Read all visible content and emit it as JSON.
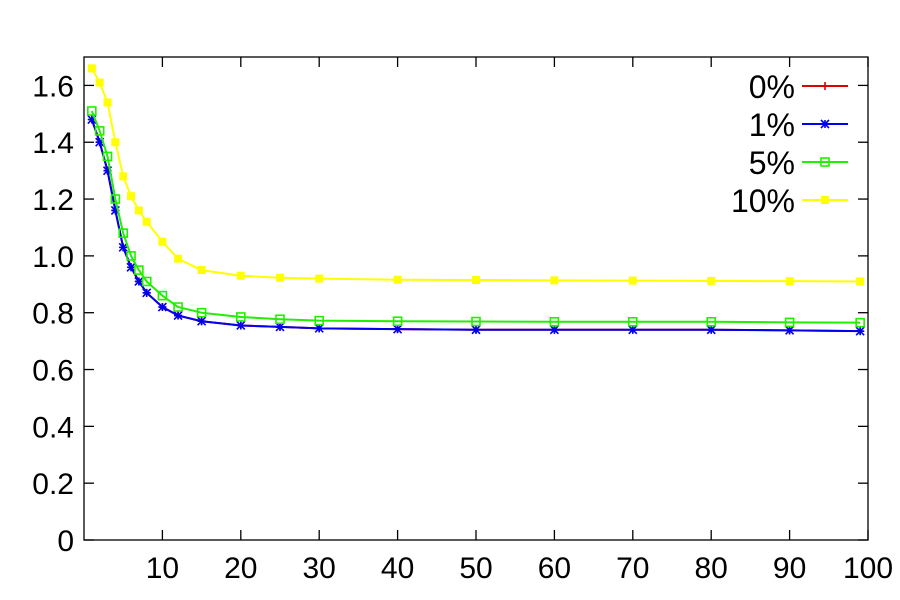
{
  "chart_data": {
    "type": "line",
    "title": "",
    "xlabel": "",
    "ylabel": "",
    "xlim": [
      0,
      100
    ],
    "ylim": [
      0,
      1.7
    ],
    "x_ticks": [
      10,
      20,
      30,
      40,
      50,
      60,
      70,
      80,
      90,
      100
    ],
    "x_tick_labels": [
      "10",
      "20",
      "30",
      "40",
      "50",
      "60",
      "70",
      "80",
      "90",
      "100"
    ],
    "y_ticks": [
      0,
      0.2,
      0.4,
      0.6,
      0.8,
      1.0,
      1.2,
      1.4,
      1.6
    ],
    "y_tick_labels": [
      "0",
      "0.2",
      "0.4",
      "0.6",
      "0.8",
      "1.0",
      "1.2",
      "1.4",
      "1.6"
    ],
    "grid": false,
    "legend_position": "top-right",
    "x": [
      1,
      2,
      3,
      4,
      5,
      6,
      7,
      8,
      10,
      12,
      15,
      20,
      25,
      30,
      40,
      50,
      60,
      70,
      80,
      90,
      99
    ],
    "series": [
      {
        "name": "0%",
        "color": "#dd0000",
        "marker": "plus",
        "values": [
          1.48,
          1.4,
          1.3,
          1.16,
          1.03,
          0.96,
          0.91,
          0.87,
          0.82,
          0.79,
          0.77,
          0.755,
          0.75,
          0.745,
          0.742,
          0.74,
          0.74,
          0.74,
          0.74,
          0.738,
          0.735
        ]
      },
      {
        "name": "1%",
        "color": "#0000ee",
        "marker": "star",
        "values": [
          1.48,
          1.4,
          1.3,
          1.16,
          1.03,
          0.96,
          0.91,
          0.87,
          0.82,
          0.79,
          0.77,
          0.755,
          0.75,
          0.745,
          0.742,
          0.74,
          0.74,
          0.74,
          0.74,
          0.738,
          0.735
        ]
      },
      {
        "name": "5%",
        "color": "#22ee00",
        "marker": "open-square",
        "values": [
          1.51,
          1.44,
          1.35,
          1.2,
          1.08,
          1.0,
          0.95,
          0.91,
          0.86,
          0.82,
          0.8,
          0.785,
          0.777,
          0.772,
          0.77,
          0.769,
          0.768,
          0.768,
          0.768,
          0.766,
          0.765
        ]
      },
      {
        "name": "10%",
        "color": "#ffff00",
        "marker": "filled-square",
        "values": [
          1.66,
          1.61,
          1.54,
          1.4,
          1.28,
          1.21,
          1.16,
          1.12,
          1.05,
          0.99,
          0.95,
          0.93,
          0.923,
          0.92,
          0.916,
          0.915,
          0.914,
          0.913,
          0.912,
          0.911,
          0.91
        ]
      }
    ]
  }
}
